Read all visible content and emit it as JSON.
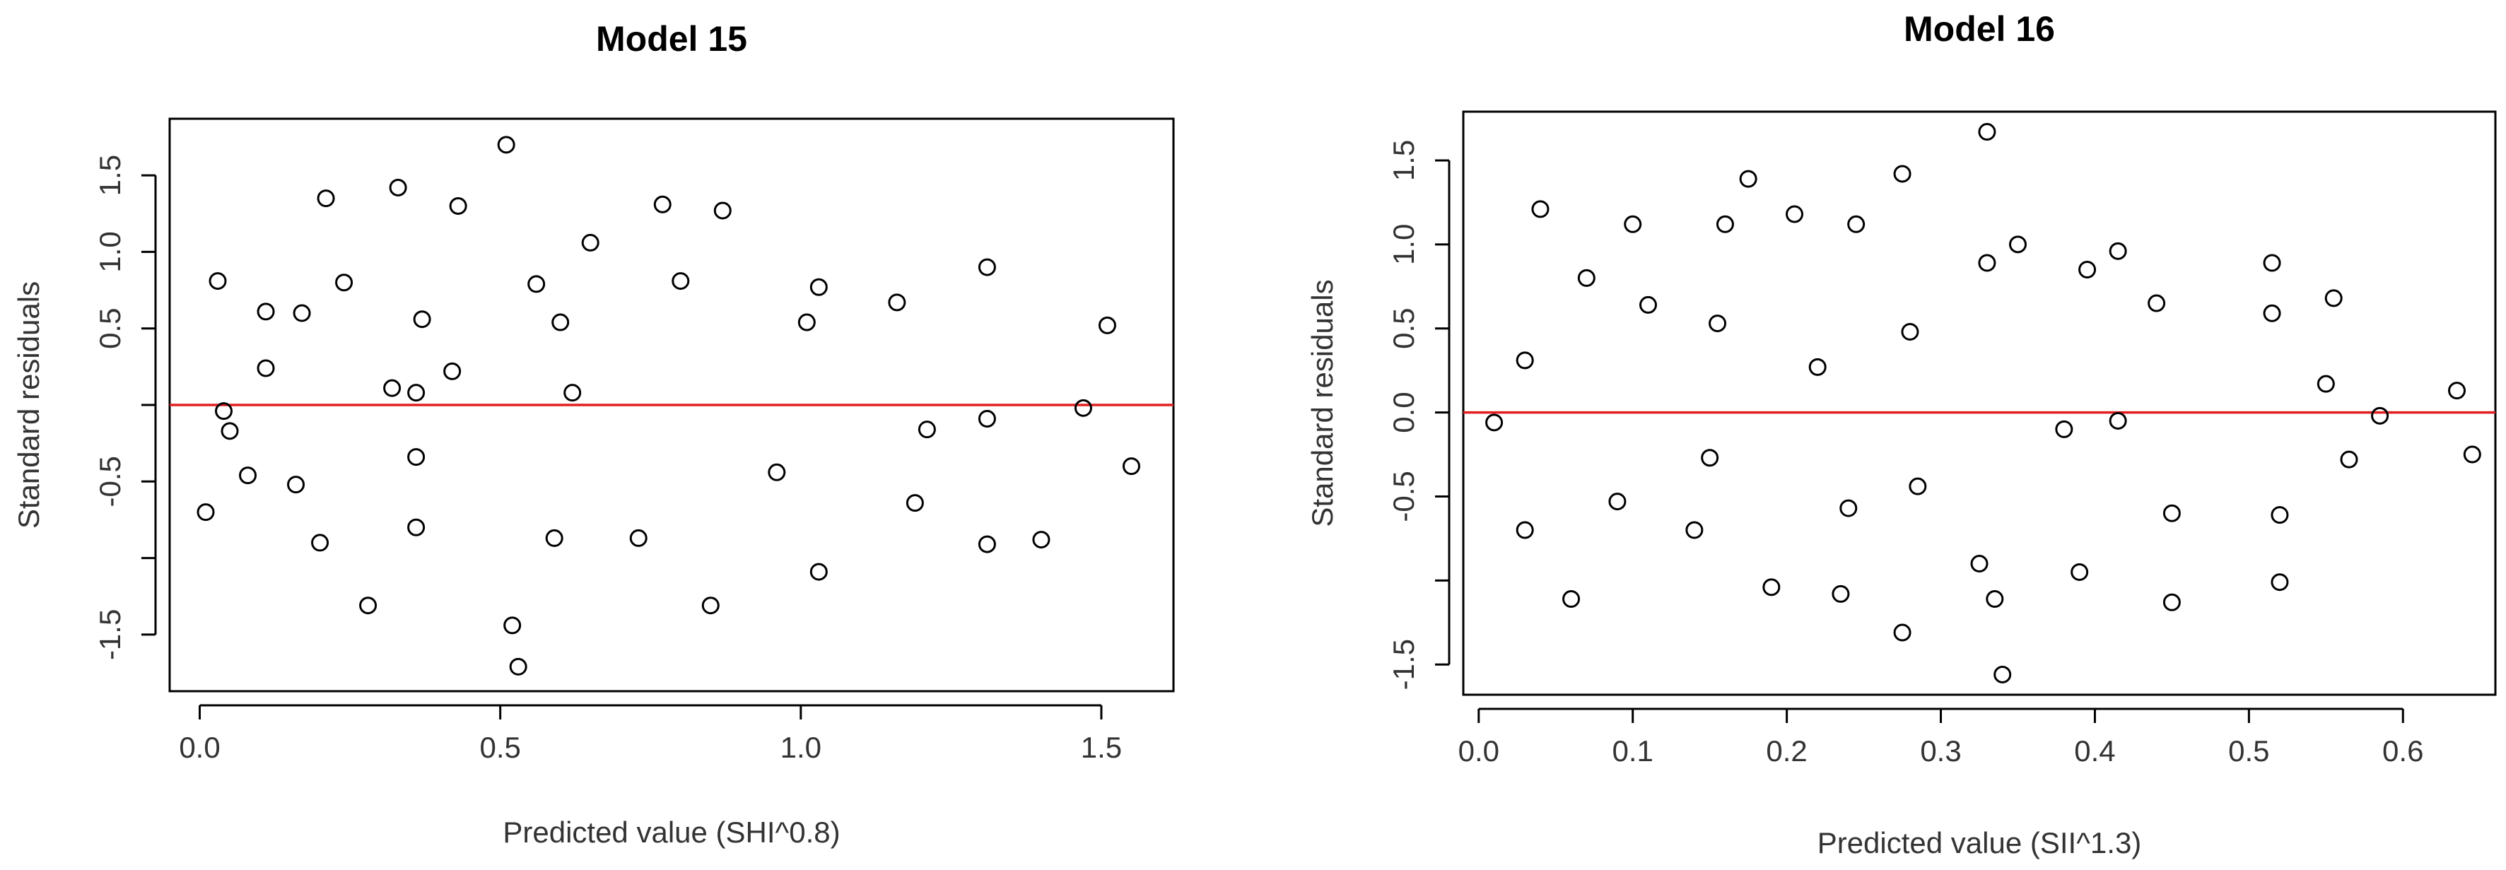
{
  "chart_data": [
    {
      "type": "scatter",
      "title": "Model 15",
      "xlabel": "Predicted value (SHI^0.8)",
      "ylabel": "Standard residuals",
      "xlim": [
        -0.05,
        1.62
      ],
      "ylim": [
        -1.87,
        1.87
      ],
      "xticks": [
        0.0,
        0.5,
        1.0,
        1.5
      ],
      "xtick_labels": [
        "0.0",
        "0.5",
        "1.0",
        "1.5"
      ],
      "yticks": [
        -1.5,
        -0.5,
        0.5,
        1.0,
        1.5
      ],
      "ytick_labels": [
        "-1.5",
        "-0.5",
        "0.5",
        "1.0",
        "1.5"
      ],
      "yaxis_ticks_only": [
        -1.0,
        0.0
      ],
      "grid": false,
      "reference_line": {
        "y": 0,
        "color": "#e02020"
      },
      "x": [
        0.01,
        0.03,
        0.04,
        0.05,
        0.08,
        0.11,
        0.11,
        0.16,
        0.17,
        0.2,
        0.21,
        0.24,
        0.28,
        0.32,
        0.33,
        0.36,
        0.36,
        0.36,
        0.37,
        0.42,
        0.43,
        0.51,
        0.52,
        0.53,
        0.56,
        0.59,
        0.6,
        0.62,
        0.65,
        0.73,
        0.77,
        0.8,
        0.85,
        0.87,
        0.96,
        1.01,
        1.03,
        1.03,
        1.16,
        1.19,
        1.21,
        1.31,
        1.31,
        1.31,
        1.4,
        1.47,
        1.51,
        1.55
      ],
      "y": [
        -0.7,
        0.81,
        -0.04,
        -0.17,
        -0.46,
        0.61,
        0.24,
        -0.52,
        0.6,
        -0.9,
        1.35,
        0.8,
        -1.31,
        0.11,
        1.42,
        -0.8,
        0.08,
        -0.34,
        0.56,
        0.22,
        1.3,
        1.7,
        -1.44,
        -1.71,
        0.79,
        -0.87,
        0.54,
        0.08,
        1.06,
        -0.87,
        1.31,
        0.81,
        -1.31,
        1.27,
        -0.44,
        0.54,
        0.77,
        -1.09,
        0.67,
        -0.64,
        -0.16,
        0.9,
        -0.09,
        -0.91,
        -0.88,
        -0.02,
        0.52,
        -0.4
      ]
    },
    {
      "type": "scatter",
      "title": "Model 16",
      "xlabel": "Predicted value (SII^1.3)",
      "ylabel": "Standard residuals",
      "xlim": [
        -0.01,
        0.66
      ],
      "ylim": [
        -1.68,
        1.79
      ],
      "xticks": [
        0.0,
        0.1,
        0.2,
        0.3,
        0.4,
        0.5,
        0.6
      ],
      "xtick_labels": [
        "0.0",
        "0.1",
        "0.2",
        "0.3",
        "0.4",
        "0.5",
        "0.6"
      ],
      "yticks": [
        -1.5,
        -0.5,
        0.0,
        0.5,
        1.0,
        1.5
      ],
      "ytick_labels": [
        "-1.5",
        "-0.5",
        "0.0",
        "0.5",
        "1.0",
        "1.5"
      ],
      "yaxis_ticks_only": [
        -1.0
      ],
      "grid": false,
      "reference_line": {
        "y": 0,
        "color": "#e02020"
      },
      "x": [
        0.01,
        0.03,
        0.03,
        0.04,
        0.06,
        0.07,
        0.09,
        0.1,
        0.11,
        0.14,
        0.15,
        0.155,
        0.16,
        0.175,
        0.19,
        0.205,
        0.22,
        0.235,
        0.24,
        0.245,
        0.275,
        0.275,
        0.28,
        0.285,
        0.325,
        0.33,
        0.33,
        0.335,
        0.34,
        0.35,
        0.38,
        0.39,
        0.395,
        0.415,
        0.415,
        0.44,
        0.45,
        0.45,
        0.515,
        0.515,
        0.52,
        0.52,
        0.55,
        0.555,
        0.565,
        0.585,
        0.635,
        0.645
      ],
      "y": [
        -0.06,
        0.31,
        -0.7,
        1.21,
        -1.11,
        0.8,
        -0.53,
        1.12,
        0.64,
        -0.7,
        -0.27,
        0.53,
        1.12,
        1.39,
        -1.04,
        1.18,
        0.27,
        -1.08,
        -0.57,
        1.12,
        1.42,
        -1.31,
        0.48,
        -0.44,
        -0.9,
        1.67,
        0.89,
        -1.11,
        -1.56,
        1.0,
        -0.1,
        -0.95,
        0.85,
        0.96,
        -0.05,
        0.65,
        -0.6,
        -1.13,
        0.89,
        0.59,
        -0.61,
        -1.01,
        0.17,
        0.68,
        -0.28,
        -0.02,
        0.13,
        -0.25
      ]
    }
  ]
}
